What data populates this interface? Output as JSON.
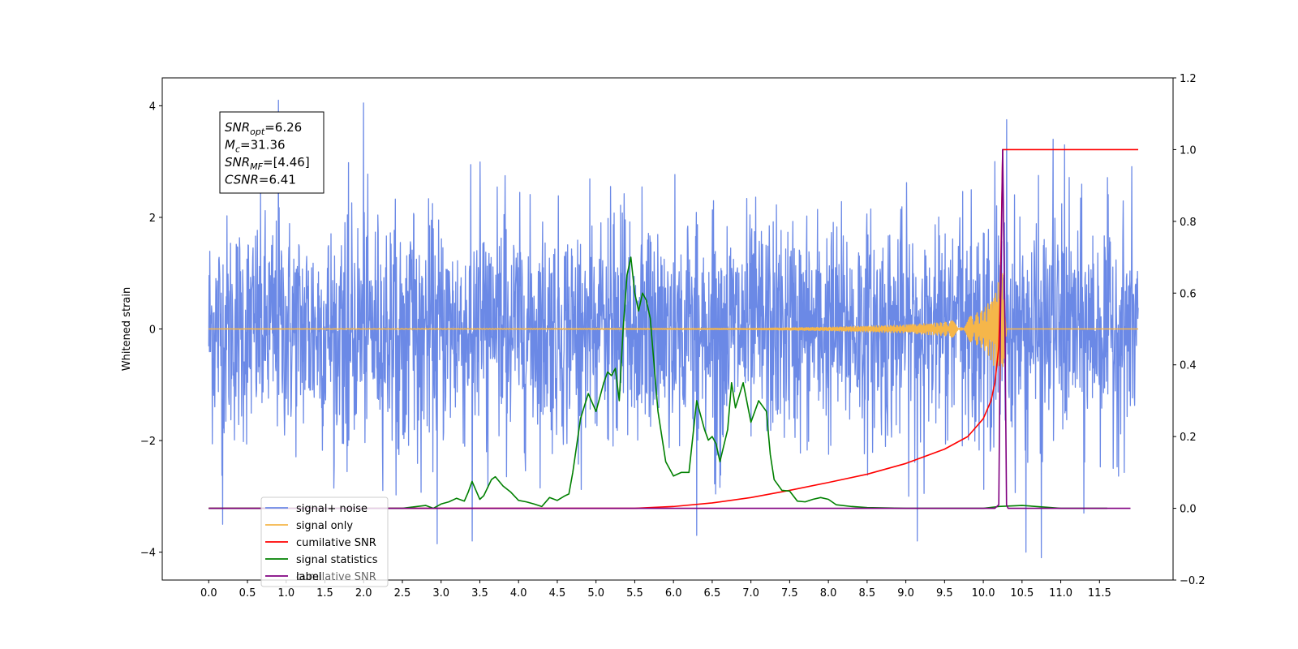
{
  "chart_data": {
    "type": "line",
    "title": "",
    "xlabel": "",
    "ylabel": "Whitened strain",
    "y2label": "",
    "xlim": [
      -0.6,
      12.45
    ],
    "ylim": [
      -4.5,
      4.5
    ],
    "y2lim": [
      -0.2,
      1.2
    ],
    "x_ticks": [
      "0.0",
      "0.5",
      "1.0",
      "1.5",
      "2.0",
      "2.5",
      "3.0",
      "3.5",
      "4.0",
      "4.5",
      "5.0",
      "5.5",
      "6.0",
      "6.5",
      "7.0",
      "7.5",
      "8.0",
      "8.5",
      "9.0",
      "9.5",
      "10.0",
      "10.5",
      "11.0",
      "11.5"
    ],
    "y_ticks": [
      "4",
      "2",
      "0",
      "−2",
      "−4"
    ],
    "y2_ticks": [
      "1.2",
      "1.0",
      "0.8",
      "0.6",
      "0.4",
      "0.2",
      "0.0",
      "−0.2"
    ],
    "grid": false,
    "legend_position": "lower-left",
    "annotation": {
      "lines": [
        {
          "name": "SNR",
          "sub": "opt",
          "value": "=6.26"
        },
        {
          "name": "M",
          "sub": "c",
          "value": "=31.36"
        },
        {
          "name": "SNR",
          "sub": "MF",
          "value": "=[4.46]"
        },
        {
          "name": "CSNR",
          "sub": "",
          "value": "=6.41"
        }
      ]
    },
    "series": [
      {
        "name": "signal+ noise",
        "axis": "left",
        "color": "#6b89e6",
        "x_range": [
          0.0,
          12.0
        ],
        "amplitude_sd": 1.0,
        "peaks": [
          [
            0.9,
            4.1
          ],
          [
            10.3,
            3.75
          ],
          [
            2.0,
            4.05
          ],
          [
            10.15,
            3.0
          ],
          [
            10.75,
            -4.1
          ],
          [
            10.55,
            -4.0
          ],
          [
            0.18,
            -3.5
          ],
          [
            3.4,
            -3.8
          ],
          [
            2.95,
            -3.85
          ],
          [
            9.15,
            -3.8
          ],
          [
            6.3,
            -3.7
          ],
          [
            10.9,
            3.4
          ],
          [
            11.05,
            3.3
          ],
          [
            11.3,
            -3.3
          ]
        ]
      },
      {
        "name": "signal only",
        "axis": "left",
        "color": "#f5b64a",
        "x": [
          0.0,
          7.0,
          8.0,
          9.0,
          9.5,
          9.8,
          10.0,
          10.1,
          10.2,
          10.25,
          10.3,
          12.0
        ],
        "envelope": [
          0.0,
          0.01,
          0.03,
          0.07,
          0.12,
          0.2,
          0.35,
          0.55,
          0.85,
          1.0,
          0.0,
          0.0
        ]
      },
      {
        "name": "cumilative SNR",
        "axis": "right",
        "color": "#ff0000",
        "x": [
          0.0,
          5.0,
          5.5,
          6.0,
          6.5,
          7.0,
          7.5,
          8.0,
          8.5,
          9.0,
          9.5,
          9.8,
          10.0,
          10.1,
          10.15,
          10.2,
          10.22,
          10.25,
          10.3,
          11.0,
          11.5,
          12.0
        ],
        "values": [
          0.0,
          0.0,
          0.0,
          0.005,
          0.015,
          0.03,
          0.05,
          0.072,
          0.095,
          0.125,
          0.165,
          0.2,
          0.25,
          0.3,
          0.35,
          0.45,
          0.6,
          1.0,
          1.0,
          1.0,
          1.0,
          1.0
        ]
      },
      {
        "name": "signal statistics",
        "axis": "right",
        "color": "#008000",
        "x": [
          0.0,
          2.5,
          2.8,
          2.9,
          3.0,
          3.1,
          3.2,
          3.3,
          3.35,
          3.4,
          3.5,
          3.55,
          3.65,
          3.7,
          3.8,
          3.9,
          4.0,
          4.1,
          4.2,
          4.3,
          4.4,
          4.5,
          4.6,
          4.65,
          4.7,
          4.8,
          4.9,
          5.0,
          5.1,
          5.15,
          5.2,
          5.25,
          5.3,
          5.35,
          5.4,
          5.45,
          5.5,
          5.55,
          5.6,
          5.65,
          5.7,
          5.8,
          5.9,
          6.0,
          6.1,
          6.2,
          6.3,
          6.4,
          6.45,
          6.5,
          6.55,
          6.6,
          6.7,
          6.75,
          6.8,
          6.9,
          7.0,
          7.1,
          7.2,
          7.25,
          7.3,
          7.4,
          7.5,
          7.6,
          7.7,
          7.8,
          7.9,
          8.0,
          8.1,
          8.3,
          8.5,
          9.0,
          10.0,
          10.2,
          10.5,
          11.0,
          11.5,
          11.6
        ],
        "values": [
          0.0,
          0.0,
          0.008,
          0.0,
          0.012,
          0.018,
          0.028,
          0.02,
          0.045,
          0.075,
          0.025,
          0.035,
          0.08,
          0.088,
          0.062,
          0.045,
          0.022,
          0.018,
          0.012,
          0.005,
          0.03,
          0.022,
          0.035,
          0.04,
          0.1,
          0.25,
          0.32,
          0.27,
          0.35,
          0.38,
          0.37,
          0.39,
          0.3,
          0.5,
          0.65,
          0.7,
          0.6,
          0.55,
          0.6,
          0.58,
          0.53,
          0.27,
          0.13,
          0.09,
          0.1,
          0.1,
          0.3,
          0.22,
          0.19,
          0.2,
          0.18,
          0.13,
          0.22,
          0.35,
          0.28,
          0.35,
          0.24,
          0.3,
          0.27,
          0.15,
          0.08,
          0.05,
          0.048,
          0.02,
          0.018,
          0.025,
          0.03,
          0.025,
          0.01,
          0.005,
          0.002,
          0.0,
          0.0,
          0.005,
          0.008,
          0.0,
          0.0,
          0.0
        ]
      },
      {
        "name": "label",
        "axis": "right",
        "color": "#800080",
        "x": [
          0.0,
          10.15,
          10.2,
          10.22,
          10.25,
          10.28,
          10.3,
          10.32,
          11.0,
          11.9
        ],
        "values": [
          0.0,
          0.0,
          0.01,
          0.5,
          1.0,
          0.5,
          0.01,
          0.0,
          0.0,
          0.0
        ]
      }
    ],
    "legend_extra": "cumilative SNR"
  }
}
